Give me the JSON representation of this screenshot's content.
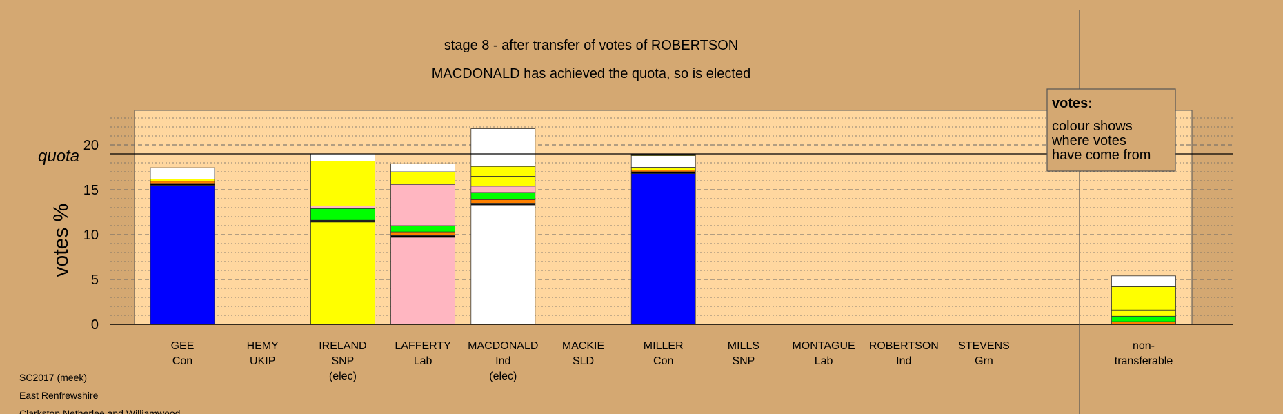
{
  "chart_data": {
    "type": "bar",
    "stacked": true,
    "title": "stage 8 - after transfer of votes of ROBERTSON",
    "subtitle": "MACDONALD has achieved the quota, so is elected",
    "ylabel": "votes %",
    "quota_label": "quota",
    "quota": 19,
    "ylim": [
      0,
      23
    ],
    "yticks": [
      0,
      5,
      10,
      15,
      20
    ],
    "grid": "horizontal",
    "legend": {
      "title": "votes:",
      "lines": [
        "colour shows",
        "where votes",
        "have come from"
      ],
      "placement": "top-right"
    },
    "candidates": [
      {
        "name": "GEE",
        "party": "Con",
        "status": "",
        "segments": [
          {
            "value": 15.5,
            "color": "#0000ff"
          },
          {
            "value": 0.2,
            "color": "#000000"
          },
          {
            "value": 0.25,
            "color": "#ff8000"
          },
          {
            "value": 0.25,
            "color": "#ffff00"
          },
          {
            "value": 1.25,
            "color": "#ffffff"
          }
        ]
      },
      {
        "name": "HEMY",
        "party": "UKIP",
        "status": "",
        "segments": []
      },
      {
        "name": "IRELAND",
        "party": "SNP",
        "status": "(elec)",
        "segments": [
          {
            "value": 11.4,
            "color": "#ffff00"
          },
          {
            "value": 0.2,
            "color": "#000000"
          },
          {
            "value": 1.3,
            "color": "#00ff00"
          },
          {
            "value": 0.3,
            "color": "#ffb6c1"
          },
          {
            "value": 5.0,
            "color": "#ffff00"
          },
          {
            "value": 0.8,
            "color": "#ffffff"
          }
        ]
      },
      {
        "name": "LAFFERTY",
        "party": "Lab",
        "status": "",
        "segments": [
          {
            "value": 9.7,
            "color": "#ffb6c1"
          },
          {
            "value": 0.2,
            "color": "#000000"
          },
          {
            "value": 0.4,
            "color": "#ff8000"
          },
          {
            "value": 0.7,
            "color": "#00ff00"
          },
          {
            "value": 4.6,
            "color": "#ffb6c1"
          },
          {
            "value": 0.6,
            "color": "#ffff00"
          },
          {
            "value": 0.8,
            "color": "#ffff00"
          },
          {
            "value": 0.9,
            "color": "#ffffff"
          }
        ]
      },
      {
        "name": "MACDONALD",
        "party": "Ind",
        "status": "(elec)",
        "segments": [
          {
            "value": 13.3,
            "color": "#ffffff"
          },
          {
            "value": 0.2,
            "color": "#000000"
          },
          {
            "value": 0.4,
            "color": "#ff8000"
          },
          {
            "value": 0.8,
            "color": "#00ff00"
          },
          {
            "value": 0.7,
            "color": "#ffb6c1"
          },
          {
            "value": 1.1,
            "color": "#ffff00"
          },
          {
            "value": 1.1,
            "color": "#ffff00"
          },
          {
            "value": 4.2,
            "color": "#ffffff"
          }
        ]
      },
      {
        "name": "MACKIE",
        "party": "SLD",
        "status": "",
        "segments": []
      },
      {
        "name": "MILLER",
        "party": "Con",
        "status": "",
        "segments": [
          {
            "value": 16.8,
            "color": "#0000ff"
          },
          {
            "value": 0.2,
            "color": "#000000"
          },
          {
            "value": 0.2,
            "color": "#ff8000"
          },
          {
            "value": 0.3,
            "color": "#ffff00"
          },
          {
            "value": 1.3,
            "color": "#ffffff"
          },
          {
            "value": 0.15,
            "color": "#ffff00"
          }
        ]
      },
      {
        "name": "MILLS",
        "party": "SNP",
        "status": "",
        "segments": []
      },
      {
        "name": "MONTAGUE",
        "party": "Lab",
        "status": "",
        "segments": []
      },
      {
        "name": "ROBERTSON",
        "party": "Ind",
        "status": "",
        "segments": []
      },
      {
        "name": "STEVENS",
        "party": "Grn",
        "status": "",
        "segments": []
      }
    ],
    "nontransferable": {
      "label_lines": [
        "non-",
        "transferable"
      ],
      "segments": [
        {
          "value": 0.3,
          "color": "#ff8000"
        },
        {
          "value": 0.6,
          "color": "#00ff00"
        },
        {
          "value": 0.7,
          "color": "#ffff00"
        },
        {
          "value": 1.2,
          "color": "#ffff00"
        },
        {
          "value": 1.4,
          "color": "#ffff00"
        },
        {
          "value": 1.2,
          "color": "#ffffff"
        }
      ]
    },
    "colors": {
      "background": "#d4a872",
      "plot_area": "#ffd79f"
    }
  },
  "footer": {
    "lines": [
      "SC2017 (meek)",
      "East Renfrewshire",
      "Clarkston Netherlee and Williamwood"
    ]
  }
}
